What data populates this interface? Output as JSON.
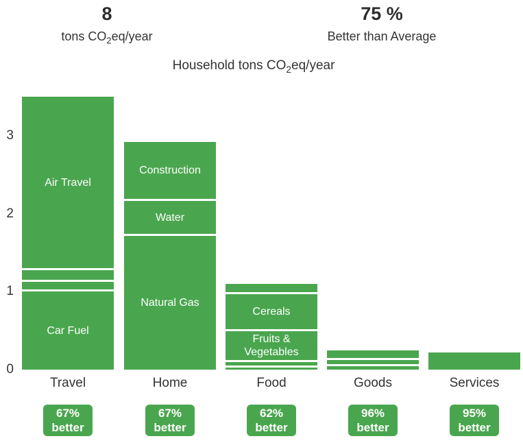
{
  "header": {
    "footprint_value": "8",
    "footprint_unit_prefix": "tons CO",
    "footprint_unit_sub": "2",
    "footprint_unit_suffix": "eq/year",
    "percent_value": "75 %",
    "percent_label": "Better than Average"
  },
  "chart_data": {
    "type": "bar",
    "stacked": true,
    "title_prefix": "Household tons CO",
    "title_sub": "2",
    "title_suffix": "eq/year",
    "ylabel": "tons CO2eq/year",
    "ylim": [
      0,
      3.5
    ],
    "yticks": [
      0,
      1,
      2,
      3
    ],
    "grid": false,
    "legend": "none",
    "bar_color": "#4aa64e",
    "separator_color": "#ffffff",
    "categories": [
      "Travel",
      "Home",
      "Food",
      "Goods",
      "Services"
    ],
    "bars": [
      {
        "category": "Travel",
        "total": 3.42,
        "badge": {
          "line1": "67%",
          "line2": "better",
          "text": "67% better"
        },
        "segments_bottom_to_top": [
          {
            "label": "Car Fuel",
            "value": 1.0
          },
          {
            "label": "",
            "value": 0.1
          },
          {
            "label": "",
            "value": 0.12
          },
          {
            "label": "Air Travel",
            "value": 2.2
          }
        ]
      },
      {
        "category": "Home",
        "total": 2.87,
        "badge": {
          "line1": "67%",
          "line2": "better",
          "text": "67% better"
        },
        "segments_bottom_to_top": [
          {
            "label": "Natural Gas",
            "value": 1.72
          },
          {
            "label": "Water",
            "value": 0.42
          },
          {
            "label": "Construction",
            "value": 0.73
          }
        ]
      },
      {
        "category": "Food",
        "total": 1.0,
        "badge": {
          "line1": "62%",
          "line2": "better",
          "text": "62% better"
        },
        "segments_bottom_to_top": [
          {
            "label": "",
            "value": 0.03
          },
          {
            "label": "",
            "value": 0.04
          },
          {
            "label": "Fruits & Vegetables",
            "value": 0.37
          },
          {
            "label": "Cereals",
            "value": 0.45
          },
          {
            "label": "",
            "value": 0.11
          }
        ]
      },
      {
        "category": "Goods",
        "total": 0.19,
        "badge": {
          "line1": "96%",
          "line2": "better",
          "text": "96% better"
        },
        "segments_bottom_to_top": [
          {
            "label": "",
            "value": 0.04
          },
          {
            "label": "",
            "value": 0.05
          },
          {
            "label": "",
            "value": 0.1
          }
        ]
      },
      {
        "category": "Services",
        "total": 0.22,
        "badge": {
          "line1": "95%",
          "line2": "better",
          "text": "95% better"
        },
        "segments_bottom_to_top": [
          {
            "label": "",
            "value": 0.22
          }
        ]
      }
    ]
  }
}
